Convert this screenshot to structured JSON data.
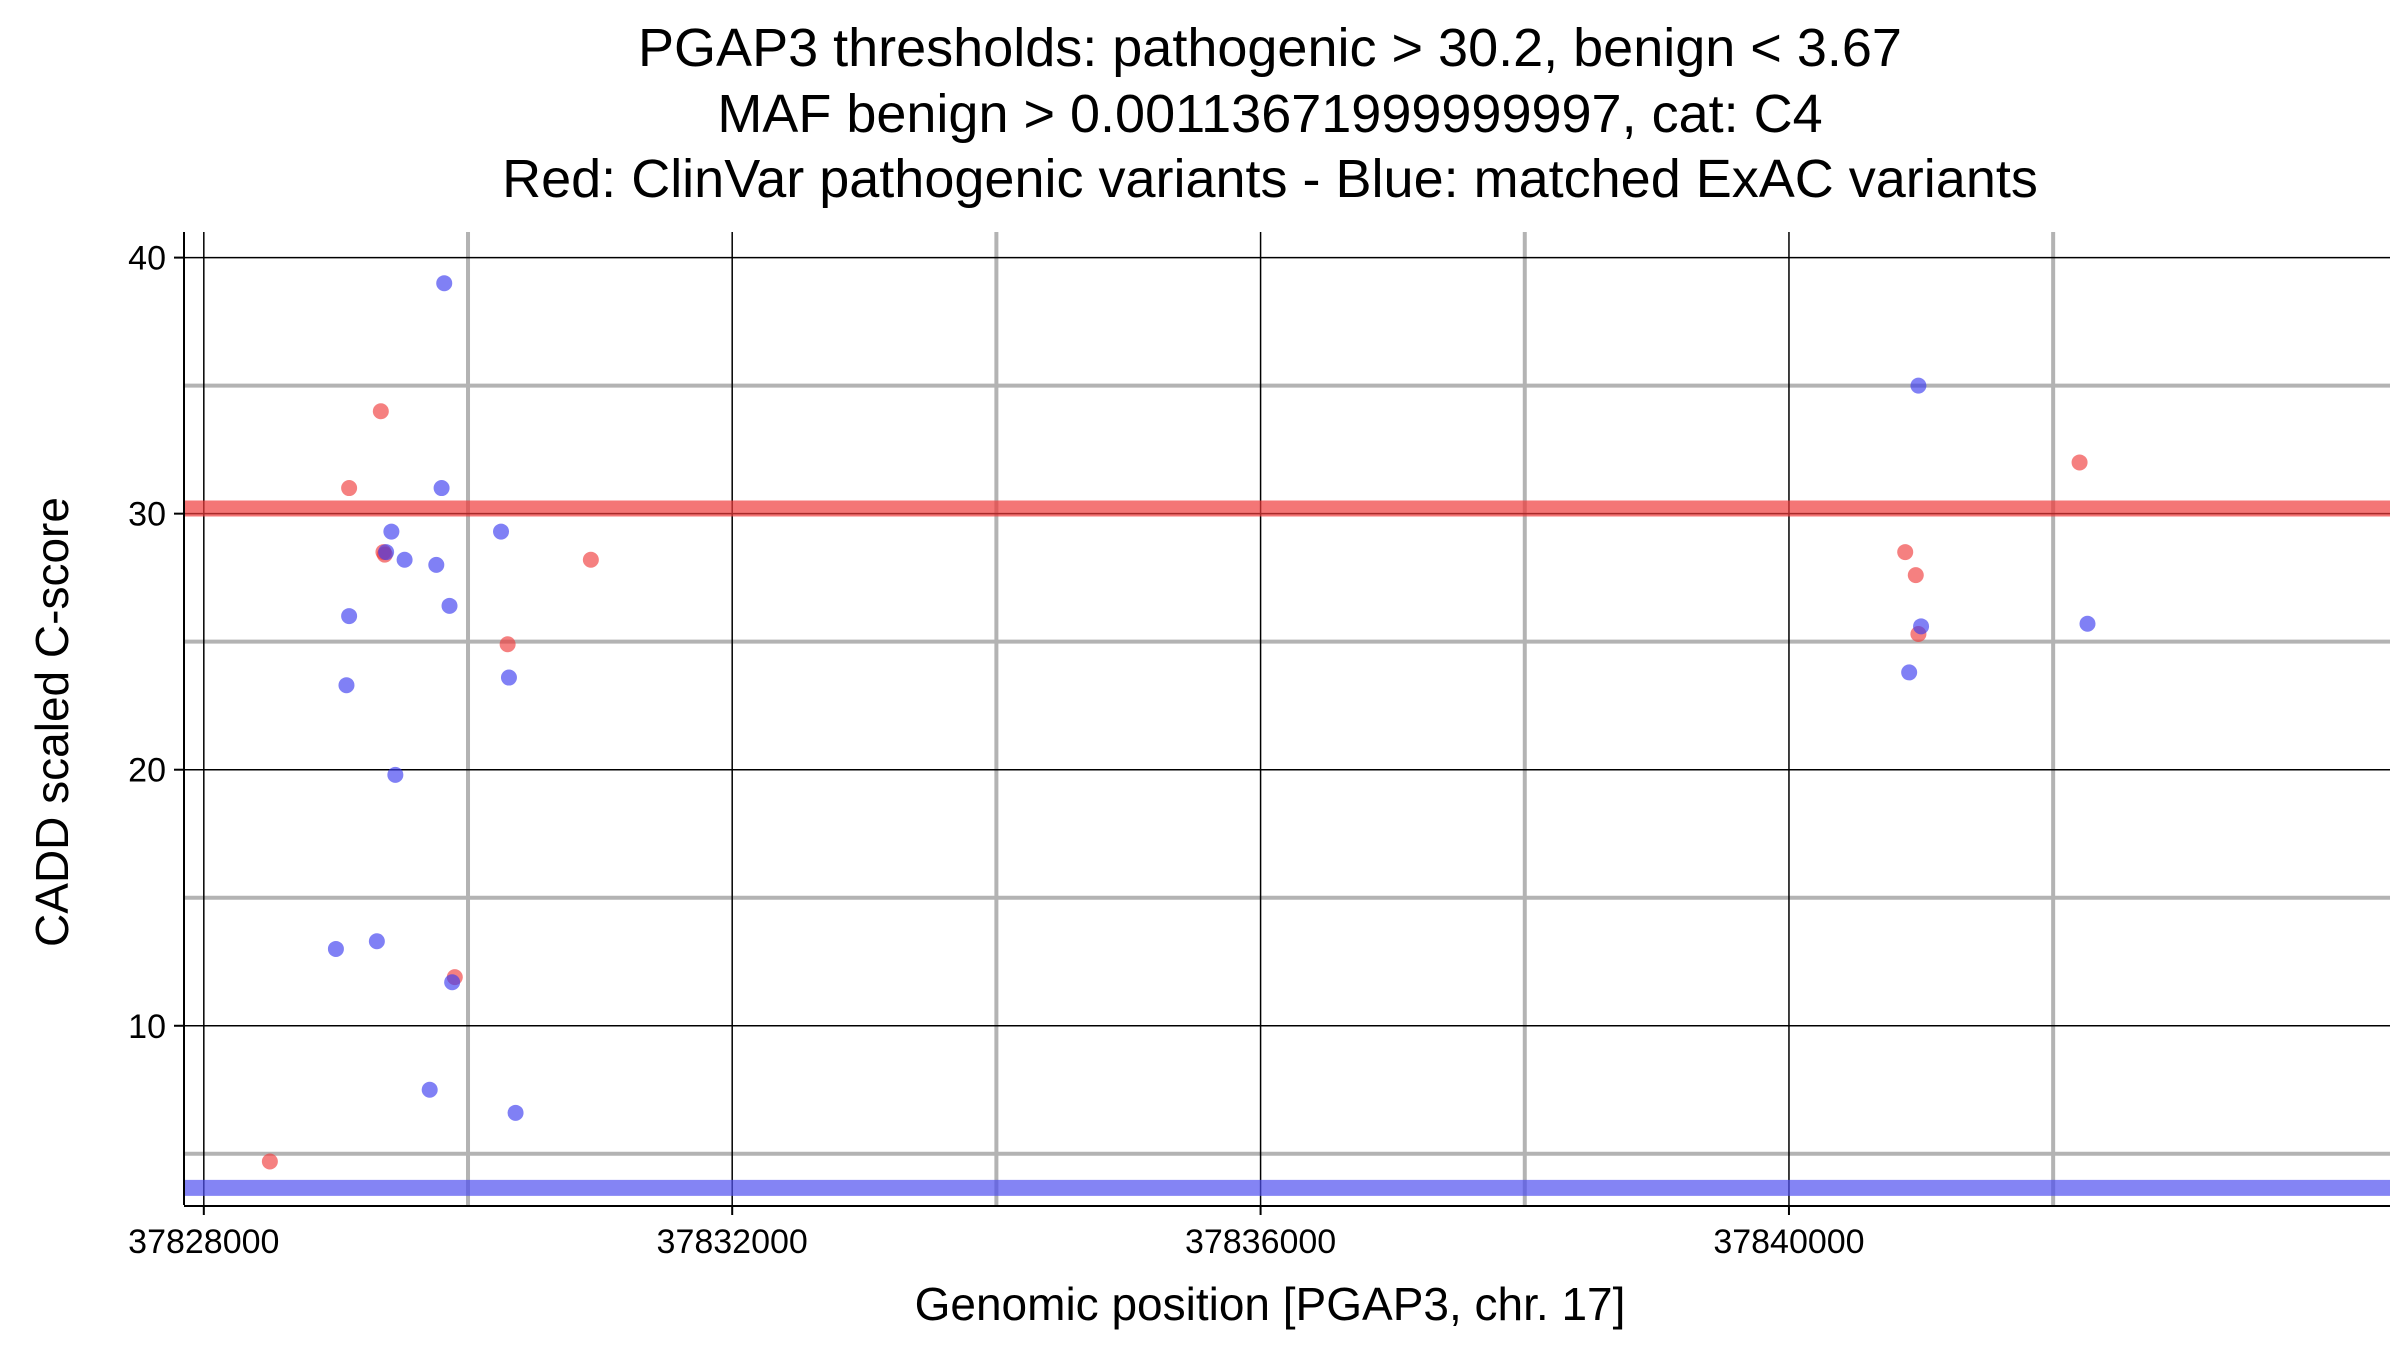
{
  "chart_data": {
    "type": "scatter",
    "title_lines": [
      "PGAP3 thresholds: pathogenic > 30.2, benign < 3.67",
      "MAF benign > 0.00113671999999997, cat: C4",
      "Red: ClinVar pathogenic variants - Blue: matched ExAC variants"
    ],
    "xlabel": "Genomic position [PGAP3, chr. 17]",
    "ylabel": "CADD scaled C-score",
    "xlim": [
      37827850,
      37844550
    ],
    "ylim": [
      3.0,
      41.0
    ],
    "x_major_ticks": [
      37828000,
      37832000,
      37836000,
      37840000
    ],
    "x_minor_gridlines": [
      37830000,
      37834000,
      37838000,
      37842000
    ],
    "y_major_ticks": [
      10,
      20,
      30,
      40
    ],
    "y_minor_gridlines": [
      5,
      15,
      25,
      35
    ],
    "x_tick_labels": [
      "37828000",
      "37832000",
      "37836000",
      "37840000"
    ],
    "y_tick_labels": [
      "10",
      "20",
      "30",
      "40"
    ],
    "grid": true,
    "thresholds": [
      {
        "name": "pathogenic",
        "value": 30.2,
        "color": "#f03c3c"
      },
      {
        "name": "benign",
        "value": 3.67,
        "color": "#5050f0"
      }
    ],
    "colors": {
      "pathogenic": "#f03c3c",
      "benign": "#3c3cf0"
    },
    "series": [
      {
        "group": "ClinVar pathogenic variants",
        "color": "#f03c3c",
        "points": [
          {
            "x": 37828500,
            "y": 4.7
          },
          {
            "x": 37829100,
            "y": 31.0
          },
          {
            "x": 37829340,
            "y": 34.0
          },
          {
            "x": 37829360,
            "y": 28.5
          },
          {
            "x": 37829370,
            "y": 28.4
          },
          {
            "x": 37829900,
            "y": 11.9
          },
          {
            "x": 37830300,
            "y": 24.9
          },
          {
            "x": 37830930,
            "y": 28.2
          },
          {
            "x": 37840880,
            "y": 28.5
          },
          {
            "x": 37840960,
            "y": 27.6
          },
          {
            "x": 37840980,
            "y": 25.3
          },
          {
            "x": 37842200,
            "y": 32.0
          }
        ]
      },
      {
        "group": "matched ExAC variants",
        "color": "#3c3cf0",
        "points": [
          {
            "x": 37829000,
            "y": 13.0
          },
          {
            "x": 37829080,
            "y": 23.3
          },
          {
            "x": 37829100,
            "y": 26.0
          },
          {
            "x": 37829310,
            "y": 13.3
          },
          {
            "x": 37829380,
            "y": 28.5
          },
          {
            "x": 37829420,
            "y": 29.3
          },
          {
            "x": 37829450,
            "y": 19.8
          },
          {
            "x": 37829520,
            "y": 28.2
          },
          {
            "x": 37829710,
            "y": 7.5
          },
          {
            "x": 37829760,
            "y": 28.0
          },
          {
            "x": 37829800,
            "y": 31.0
          },
          {
            "x": 37829820,
            "y": 39.0
          },
          {
            "x": 37829860,
            "y": 26.4
          },
          {
            "x": 37829880,
            "y": 11.7
          },
          {
            "x": 37830250,
            "y": 29.3
          },
          {
            "x": 37830310,
            "y": 23.6
          },
          {
            "x": 37830360,
            "y": 6.6
          },
          {
            "x": 37840910,
            "y": 23.8
          },
          {
            "x": 37840980,
            "y": 35.0
          },
          {
            "x": 37841000,
            "y": 25.6
          },
          {
            "x": 37842260,
            "y": 25.7
          }
        ]
      }
    ]
  }
}
